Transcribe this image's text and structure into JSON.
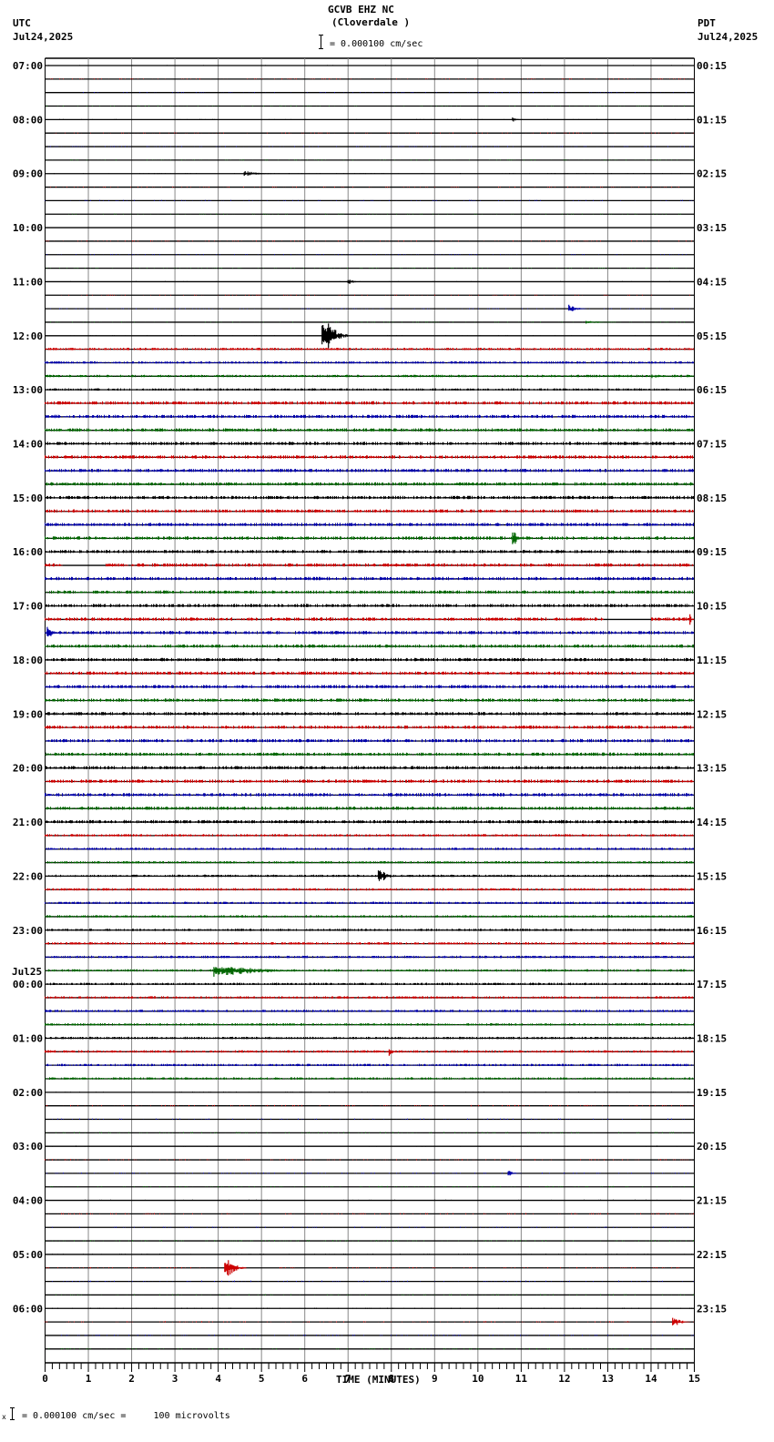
{
  "header": {
    "station": "GCVB EHZ NC",
    "location": "(Cloverdale )",
    "left_tz": "UTC",
    "left_date": "Jul24,2025",
    "right_tz": "PDT",
    "right_date": "Jul24,2025",
    "scale_text": "= 0.000100 cm/sec"
  },
  "footer": {
    "scale_text": "= 0.000100 cm/sec =     100 microvolts",
    "prefix": "x"
  },
  "colors": {
    "trace_cycle": [
      "#000000",
      "#cc0000",
      "#0000aa",
      "#006600"
    ],
    "grid": "#888888",
    "baseline": "#000000"
  },
  "chart_data": {
    "type": "line",
    "title": "GCVB EHZ NC (Cloverdale )",
    "xlabel": "TIME (MINUTES)",
    "ylabel": "",
    "x_ticks": [
      "0",
      "1",
      "2",
      "3",
      "4",
      "5",
      "6",
      "7",
      "8",
      "9",
      "10",
      "11",
      "12",
      "13",
      "14",
      "15"
    ],
    "xlim": [
      0,
      15
    ],
    "grid": true,
    "rows_per_hour": 4,
    "row_count": 96,
    "left_labels": [
      {
        "row": 0,
        "text": "07:00"
      },
      {
        "row": 4,
        "text": "08:00"
      },
      {
        "row": 8,
        "text": "09:00"
      },
      {
        "row": 12,
        "text": "10:00"
      },
      {
        "row": 16,
        "text": "11:00"
      },
      {
        "row": 20,
        "text": "12:00"
      },
      {
        "row": 24,
        "text": "13:00"
      },
      {
        "row": 28,
        "text": "14:00"
      },
      {
        "row": 32,
        "text": "15:00"
      },
      {
        "row": 36,
        "text": "16:00"
      },
      {
        "row": 40,
        "text": "17:00"
      },
      {
        "row": 44,
        "text": "18:00"
      },
      {
        "row": 48,
        "text": "19:00"
      },
      {
        "row": 52,
        "text": "20:00"
      },
      {
        "row": 56,
        "text": "21:00"
      },
      {
        "row": 60,
        "text": "22:00"
      },
      {
        "row": 64,
        "text": "23:00"
      },
      {
        "row": 68,
        "text": "00:00",
        "above": "Jul25"
      },
      {
        "row": 72,
        "text": "01:00"
      },
      {
        "row": 76,
        "text": "02:00"
      },
      {
        "row": 80,
        "text": "03:00"
      },
      {
        "row": 84,
        "text": "04:00"
      },
      {
        "row": 88,
        "text": "05:00"
      },
      {
        "row": 92,
        "text": "06:00"
      }
    ],
    "right_labels": [
      {
        "row": 0,
        "text": "00:15"
      },
      {
        "row": 4,
        "text": "01:15"
      },
      {
        "row": 8,
        "text": "02:15"
      },
      {
        "row": 12,
        "text": "03:15"
      },
      {
        "row": 16,
        "text": "04:15"
      },
      {
        "row": 20,
        "text": "05:15"
      },
      {
        "row": 24,
        "text": "06:15"
      },
      {
        "row": 28,
        "text": "07:15"
      },
      {
        "row": 32,
        "text": "08:15"
      },
      {
        "row": 36,
        "text": "09:15"
      },
      {
        "row": 40,
        "text": "10:15"
      },
      {
        "row": 44,
        "text": "11:15"
      },
      {
        "row": 48,
        "text": "12:15"
      },
      {
        "row": 52,
        "text": "13:15"
      },
      {
        "row": 56,
        "text": "14:15"
      },
      {
        "row": 60,
        "text": "15:15"
      },
      {
        "row": 64,
        "text": "16:15"
      },
      {
        "row": 68,
        "text": "17:15"
      },
      {
        "row": 72,
        "text": "18:15"
      },
      {
        "row": 76,
        "text": "19:15"
      },
      {
        "row": 80,
        "text": "20:15"
      },
      {
        "row": 84,
        "text": "21:15"
      },
      {
        "row": 88,
        "text": "22:15"
      },
      {
        "row": 92,
        "text": "23:15"
      }
    ],
    "noise_level_by_row_range": [
      {
        "from": 0,
        "to": 20,
        "level": 0.6
      },
      {
        "from": 21,
        "to": 24,
        "level": 1.6
      },
      {
        "from": 25,
        "to": 56,
        "level": 2.2
      },
      {
        "from": 57,
        "to": 75,
        "level": 1.6
      },
      {
        "from": 76,
        "to": 95,
        "level": 0.8
      }
    ],
    "gaps": [
      {
        "row": 41,
        "x_start": 12.9,
        "x_end": 14.0
      },
      {
        "row": 37,
        "x_start": 0.4,
        "x_end": 1.4
      }
    ],
    "events": [
      {
        "row": 4,
        "x": 10.8,
        "amp": 3,
        "dur": 0.3
      },
      {
        "row": 8,
        "x": 4.6,
        "amp": 3,
        "dur": 1.0
      },
      {
        "row": 16,
        "x": 7.0,
        "amp": 4,
        "dur": 0.4
      },
      {
        "row": 18,
        "x": 12.1,
        "amp": 6,
        "dur": 0.4
      },
      {
        "row": 19,
        "x": 12.5,
        "amp": 2,
        "dur": 0.8
      },
      {
        "row": 20,
        "x": 6.4,
        "amp": 30,
        "dur": 0.6
      },
      {
        "row": 23,
        "x": 14.0,
        "amp": 2,
        "dur": 1.0
      },
      {
        "row": 35,
        "x": 10.8,
        "amp": 12,
        "dur": 0.3
      },
      {
        "row": 42,
        "x": 0.05,
        "amp": 10,
        "dur": 0.3
      },
      {
        "row": 41,
        "x": 14.9,
        "amp": 6,
        "dur": 0.1
      },
      {
        "row": 60,
        "x": 7.7,
        "amp": 12,
        "dur": 0.4
      },
      {
        "row": 67,
        "x": 3.9,
        "amp": 8,
        "dur": 2.5
      },
      {
        "row": 73,
        "x": 7.95,
        "amp": 5,
        "dur": 0.2
      },
      {
        "row": 82,
        "x": 10.7,
        "amp": 4,
        "dur": 0.3
      },
      {
        "row": 89,
        "x": 4.15,
        "amp": 16,
        "dur": 0.5
      },
      {
        "row": 93,
        "x": 14.5,
        "amp": 8,
        "dur": 0.4
      }
    ]
  }
}
